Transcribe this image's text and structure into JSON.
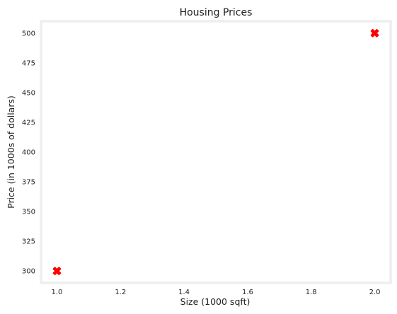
{
  "chart_data": {
    "type": "scatter",
    "title": "Housing Prices",
    "xlabel": "Size (1000 sqft)",
    "ylabel": "Price (in 1000s of dollars)",
    "xlim": [
      0.95,
      2.05
    ],
    "ylim": [
      290,
      510
    ],
    "xticks": [
      1.0,
      1.2,
      1.4,
      1.6,
      1.8,
      2.0
    ],
    "xtick_labels": [
      "1.0",
      "1.2",
      "1.4",
      "1.6",
      "1.8",
      "2.0"
    ],
    "yticks": [
      300,
      325,
      350,
      375,
      400,
      425,
      450,
      475,
      500
    ],
    "ytick_labels": [
      "300",
      "325",
      "350",
      "375",
      "400",
      "425",
      "450",
      "475",
      "500"
    ],
    "grid": false,
    "series": [
      {
        "marker": "x-filled",
        "color": "#ff0000",
        "points": [
          {
            "x": 1.0,
            "y": 300
          },
          {
            "x": 2.0,
            "y": 500
          }
        ]
      }
    ]
  },
  "colors": {
    "frame": "#eeeeee",
    "marker": "#ff0000",
    "text": "#222222"
  }
}
